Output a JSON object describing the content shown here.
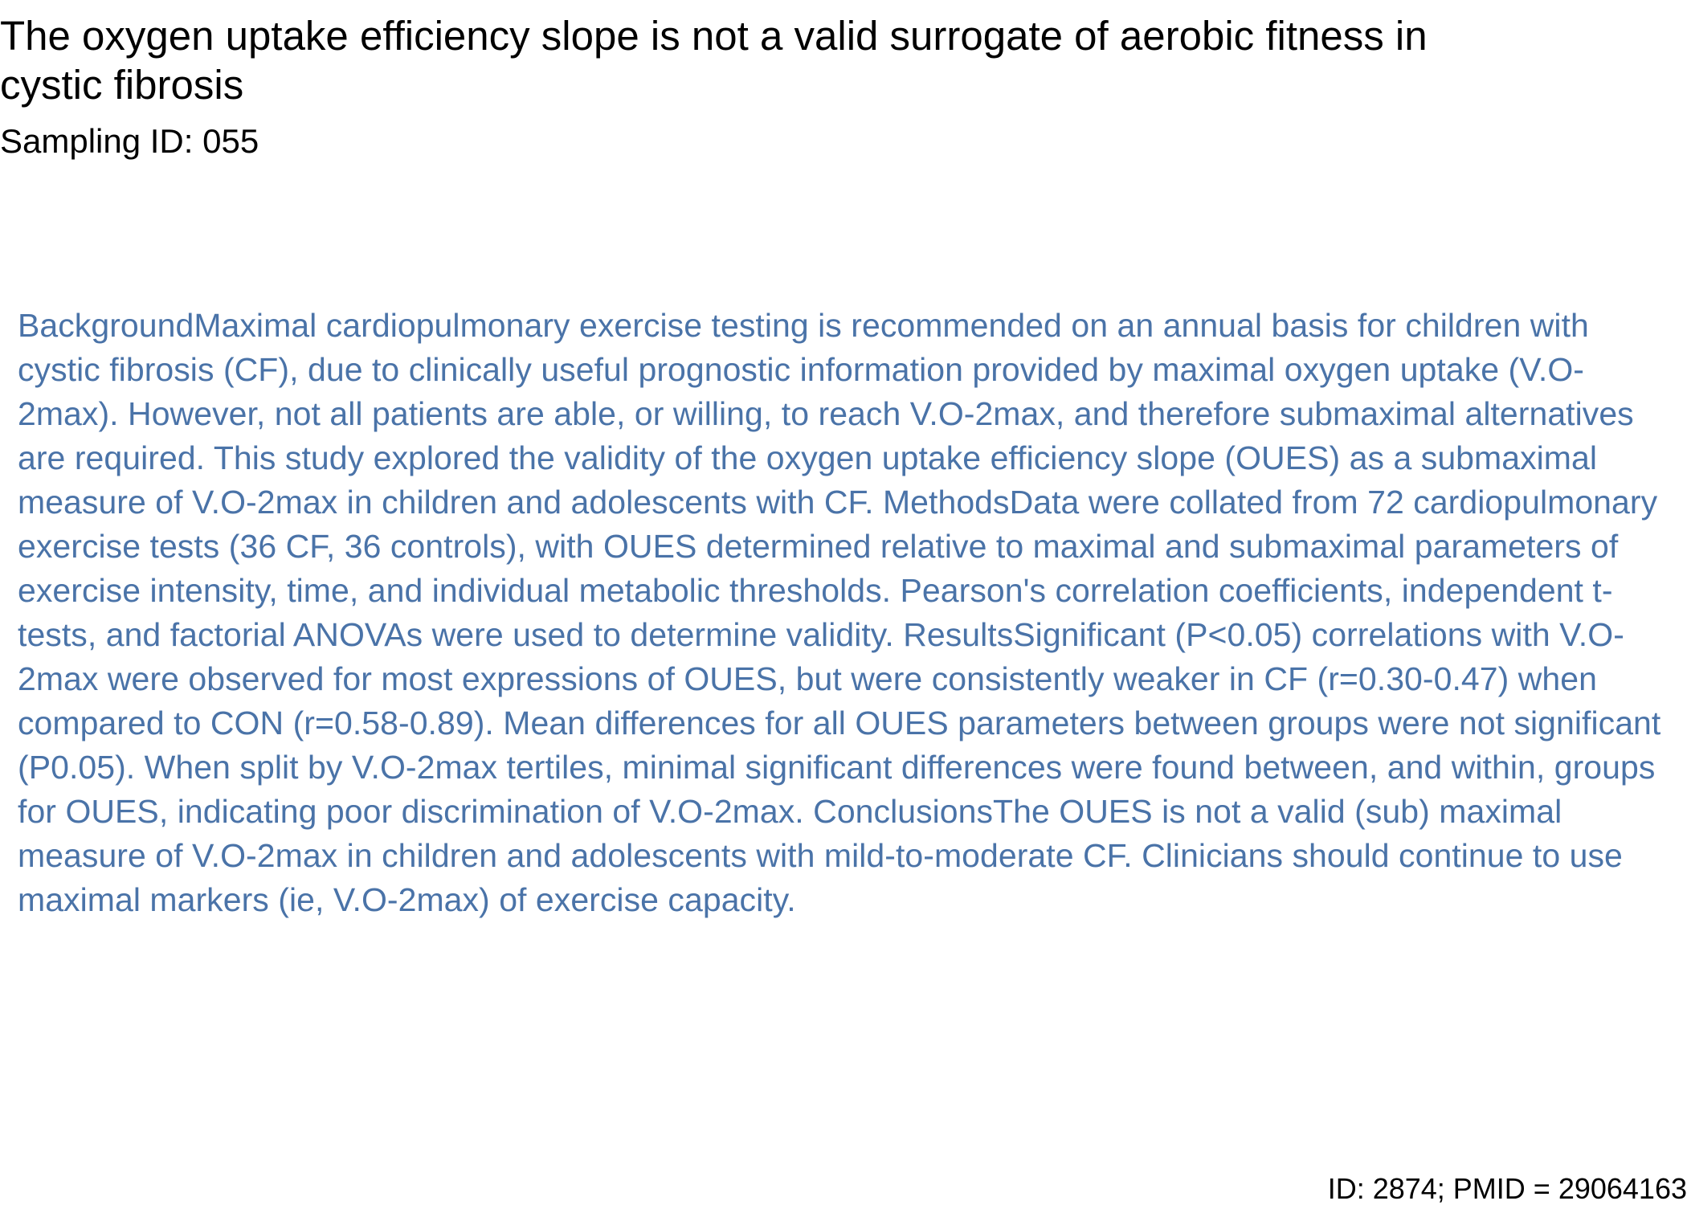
{
  "paper": {
    "title": "The oxygen uptake efficiency slope is not a valid surrogate of aerobic fitness in cystic fibrosis",
    "sampling_id": "Sampling ID: 055",
    "abstract": "BackgroundMaximal cardiopulmonary exercise testing is recommended on an annual basis for children with cystic fibrosis (CF), due to clinically useful prognostic information provided by maximal oxygen uptake (V.O-2max). However, not all patients are able, or willing, to reach V.O-2max, and therefore submaximal alternatives are required. This study explored the validity of the oxygen uptake efficiency slope (OUES) as a submaximal measure of V.O-2max in children and adolescents with CF. MethodsData were collated from 72 cardiopulmonary exercise tests (36 CF, 36 controls), with OUES determined relative to maximal and submaximal parameters of exercise intensity, time, and individual metabolic thresholds. Pearson's correlation coefficients, independent t-tests, and factorial ANOVAs were used to determine validity. ResultsSignificant (P<0.05) correlations with V.O-2max were observed for most expressions of OUES, but were consistently weaker in CF (r=0.30-0.47) when compared to CON (r=0.58-0.89). Mean differences for all OUES parameters between groups were not significant (P0.05). When split by V.O-2max tertiles, minimal significant differences were found between, and within, groups for OUES, indicating poor discrimination of V.O-2max. ConclusionsThe OUES is not a valid (sub) maximal measure of V.O-2max in children and adolescents with mild-to-moderate CF. Clinicians should continue to use maximal markers (ie, V.O-2max) of exercise capacity.",
    "footer": "ID: 2874; PMID = 29064163"
  },
  "colors": {
    "title_text": "#000000",
    "abstract_text": "#4a73a8",
    "background": "#ffffff"
  }
}
